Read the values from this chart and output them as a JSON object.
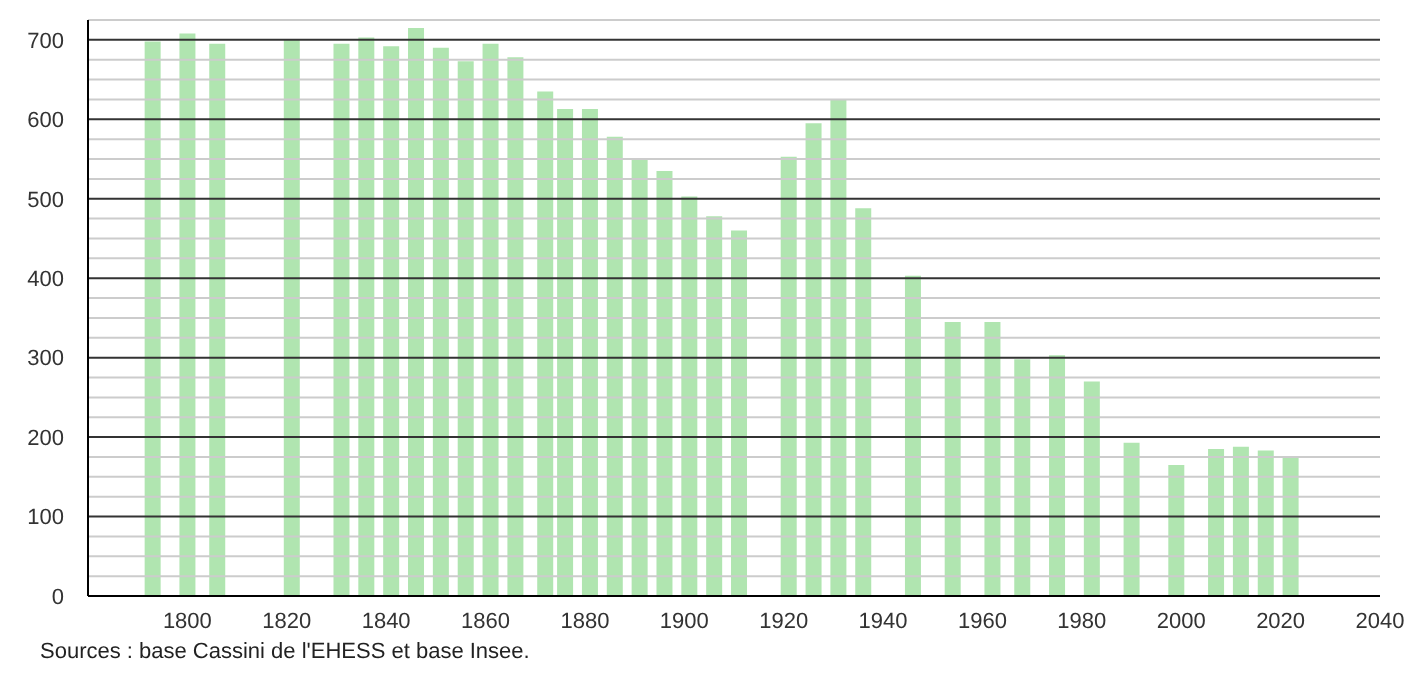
{
  "chart_data": {
    "type": "bar",
    "x": [
      1793,
      1800,
      1806,
      1821,
      1831,
      1836,
      1841,
      1846,
      1851,
      1856,
      1861,
      1866,
      1872,
      1876,
      1881,
      1886,
      1891,
      1896,
      1901,
      1906,
      1911,
      1921,
      1926,
      1931,
      1936,
      1946,
      1954,
      1962,
      1968,
      1975,
      1982,
      1990,
      1999,
      2007,
      2012,
      2017,
      2022
    ],
    "values": [
      698,
      708,
      695,
      700,
      695,
      703,
      692,
      715,
      690,
      673,
      695,
      678,
      635,
      613,
      613,
      578,
      550,
      535,
      503,
      478,
      460,
      553,
      595,
      625,
      488,
      403,
      345,
      345,
      298,
      303,
      270,
      193,
      165,
      185,
      188,
      183,
      175
    ],
    "color": "#b0e5b0",
    "xlim": [
      1780,
      2040
    ],
    "xticks": [
      1800,
      1820,
      1840,
      1860,
      1880,
      1900,
      1920,
      1940,
      1960,
      1980,
      2000,
      2020,
      2040
    ],
    "ylim": [
      0,
      725
    ],
    "yticks": [
      0,
      {
        "value": 25,
        "label": null
      },
      {
        "value": 50,
        "label": null
      },
      {
        "value": 75,
        "label": null
      },
      100,
      {
        "value": 125,
        "label": null
      },
      {
        "value": 150,
        "label": null
      },
      {
        "value": 175,
        "label": null
      },
      200,
      {
        "value": 225,
        "label": null
      },
      {
        "value": 250,
        "label": null
      },
      {
        "value": 275,
        "label": null
      },
      300,
      {
        "value": 325,
        "label": null
      },
      {
        "value": 350,
        "label": null
      },
      {
        "value": 375,
        "label": null
      },
      400,
      {
        "value": 425,
        "label": null
      },
      {
        "value": 450,
        "label": null
      },
      {
        "value": 475,
        "label": null
      },
      500,
      {
        "value": 525,
        "label": null
      },
      {
        "value": 550,
        "label": null
      },
      {
        "value": 575,
        "label": null
      },
      600,
      {
        "value": 625,
        "label": null
      },
      {
        "value": 650,
        "label": null
      },
      {
        "value": 675,
        "label": null
      },
      700,
      {
        "value": 725,
        "label": null
      }
    ],
    "grid": "y",
    "annotations": [
      "Sources : base Cassini de l'EHESS et base Insee."
    ]
  }
}
